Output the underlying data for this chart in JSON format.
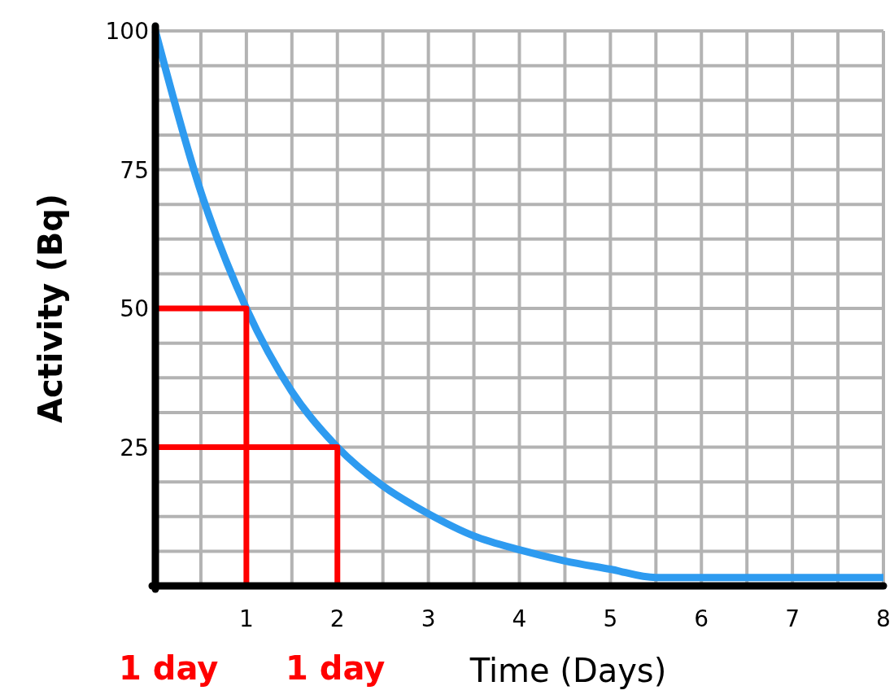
{
  "chart_data": {
    "type": "line",
    "xlabel": "Time (Days)",
    "ylabel": "Activity (Bq)",
    "xlim": [
      0,
      8
    ],
    "ylim": [
      0,
      100
    ],
    "xticks": [
      {
        "value": 0.5,
        "label": null
      },
      1,
      {
        "value": 1.5,
        "label": null
      },
      2,
      {
        "value": 2.5,
        "label": null
      },
      3,
      {
        "value": 3.5,
        "label": null
      },
      4,
      {
        "value": 4.5,
        "label": null
      },
      5,
      {
        "value": 5.5,
        "label": null
      },
      6,
      {
        "value": 6.5,
        "label": null
      },
      7,
      {
        "value": 7.5,
        "label": null
      },
      8
    ],
    "yticks": [
      {
        "value": 6.25,
        "label": null
      },
      {
        "value": 12.5,
        "label": null
      },
      {
        "value": 18.75,
        "label": null
      },
      25,
      {
        "value": 31.25,
        "label": null
      },
      {
        "value": 37.5,
        "label": null
      },
      {
        "value": 43.75,
        "label": null
      },
      50,
      {
        "value": 56.25,
        "label": null
      },
      {
        "value": 62.5,
        "label": null
      },
      {
        "value": 68.75,
        "label": null
      },
      75,
      {
        "value": 81.25,
        "label": null
      },
      {
        "value": 87.5,
        "label": null
      },
      {
        "value": 93.75,
        "label": null
      },
      100
    ],
    "grid": true,
    "series": [
      {
        "color": "#2e9bf0",
        "x": [
          0,
          0.5,
          1,
          1.5,
          2,
          2.5,
          3,
          3.5,
          4,
          4.5,
          5,
          5.5,
          6,
          7,
          8
        ],
        "values": [
          100,
          71,
          50,
          35,
          25,
          18,
          13,
          9,
          6.5,
          4.5,
          3,
          1.5,
          1.5,
          1.5,
          1.5
        ]
      },
      {
        "color": "#ff0000",
        "x": [
          0,
          1,
          1
        ],
        "values": [
          50,
          50,
          0
        ]
      },
      {
        "color": "#ff0000",
        "x": [
          0,
          2,
          2
        ],
        "values": [
          25,
          25,
          0
        ]
      }
    ],
    "annotations": [
      "1 day",
      "1 day"
    ]
  }
}
